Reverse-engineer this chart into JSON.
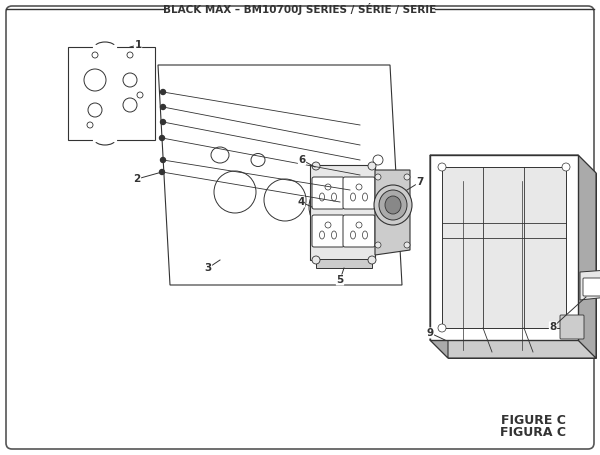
{
  "title": "BLACK MAX – BM10700J SERIES / SÉRIE / SERIE",
  "figure_label_1": "FIGURE C",
  "figure_label_2": "FIGURA C",
  "bg_color": "#ffffff",
  "line_color": "#333333",
  "light_gray": "#e8e8e8",
  "mid_gray": "#cccccc",
  "dark_gray": "#aaaaaa",
  "title_fontsize": 7.5,
  "label_fontsize": 7.5,
  "fig_label_fontsize": 9
}
